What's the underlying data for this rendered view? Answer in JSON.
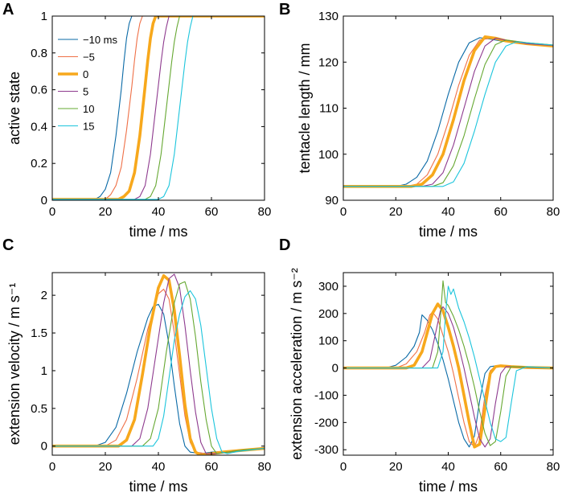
{
  "legend": {
    "entries": [
      "−10 ms",
      "−5",
      "0",
      "5",
      "10",
      "15"
    ],
    "colors": [
      "#0a6aa6",
      "#ef7047",
      "#f7a81c",
      "#8e3a8e",
      "#66a832",
      "#1cc5dc"
    ]
  },
  "chart_data": [
    {
      "panel": "A",
      "type": "line",
      "xlabel": "time / ms",
      "ylabel": "active state",
      "xlim": [
        0,
        80
      ],
      "ylim": [
        0,
        1
      ],
      "xticks": [
        "0",
        "20",
        "40",
        "60",
        "80"
      ],
      "xtick_values": [
        0,
        20,
        40,
        60,
        80
      ],
      "yticks": [
        "0",
        "0.2",
        "0.4",
        "0.6",
        "0.8",
        "1"
      ],
      "ytick_values": [
        0,
        0.2,
        0.4,
        0.6,
        0.8,
        1
      ],
      "series": [
        {
          "name": "−10 ms",
          "x": [
            0,
            16,
            18,
            20,
            22,
            24,
            26,
            27,
            28,
            29,
            30,
            80
          ],
          "y": [
            0.005,
            0.005,
            0.02,
            0.06,
            0.15,
            0.35,
            0.6,
            0.75,
            0.88,
            0.96,
            1,
            1
          ]
        },
        {
          "name": "−5",
          "x": [
            0,
            20,
            22,
            24,
            26,
            28,
            30,
            31,
            32,
            33,
            34,
            80
          ],
          "y": [
            0.005,
            0.005,
            0.03,
            0.08,
            0.18,
            0.38,
            0.62,
            0.76,
            0.88,
            0.96,
            1,
            1
          ]
        },
        {
          "name": "0",
          "x": [
            0,
            25,
            27,
            29,
            31,
            33,
            35,
            36,
            37,
            38,
            39,
            80
          ],
          "y": [
            0.005,
            0.005,
            0.02,
            0.05,
            0.15,
            0.35,
            0.62,
            0.76,
            0.88,
            0.96,
            1,
            1
          ]
        },
        {
          "name": "5",
          "x": [
            0,
            31,
            33,
            35,
            37,
            39,
            41,
            42,
            43,
            44,
            80
          ],
          "y": [
            0.005,
            0.005,
            0.02,
            0.08,
            0.25,
            0.5,
            0.75,
            0.86,
            0.94,
            1,
            1
          ]
        },
        {
          "name": "10",
          "x": [
            0,
            35,
            37,
            39,
            41,
            43,
            45,
            46,
            47,
            48,
            80
          ],
          "y": [
            0.005,
            0.005,
            0.02,
            0.08,
            0.25,
            0.5,
            0.75,
            0.86,
            0.94,
            1,
            1
          ]
        },
        {
          "name": "15",
          "x": [
            0,
            40,
            42,
            44,
            46,
            48,
            50,
            51,
            52,
            53,
            80
          ],
          "y": [
            0.005,
            0.005,
            0.02,
            0.08,
            0.25,
            0.5,
            0.75,
            0.86,
            0.94,
            1,
            1
          ]
        }
      ]
    },
    {
      "panel": "B",
      "type": "line",
      "xlabel": "time / ms",
      "ylabel": "tentacle length / mm",
      "xlim": [
        0,
        80
      ],
      "ylim": [
        90,
        130
      ],
      "xticks": [
        "0",
        "20",
        "40",
        "60",
        "80"
      ],
      "xtick_values": [
        0,
        20,
        40,
        60,
        80
      ],
      "yticks": [
        "90",
        "100",
        "110",
        "120",
        "130"
      ],
      "ytick_values": [
        90,
        100,
        110,
        120,
        130
      ],
      "series": [
        {
          "name": "−10 ms",
          "x": [
            0,
            20,
            24,
            28,
            32,
            36,
            40,
            44,
            48,
            52,
            56,
            60,
            70,
            80
          ],
          "y": [
            93,
            93,
            93.5,
            95,
            98.5,
            105,
            113,
            120,
            124.2,
            125.3,
            125,
            124.6,
            124,
            123.5
          ]
        },
        {
          "name": "−5",
          "x": [
            0,
            24,
            28,
            32,
            36,
            40,
            44,
            48,
            52,
            56,
            60,
            70,
            80
          ],
          "y": [
            93,
            93,
            93.5,
            95.5,
            100,
            107,
            115,
            121.5,
            124.8,
            125.2,
            124.8,
            124,
            123.5
          ]
        },
        {
          "name": "0",
          "x": [
            0,
            26,
            30,
            34,
            38,
            42,
            46,
            50,
            54,
            58,
            62,
            70,
            80
          ],
          "y": [
            93,
            93,
            93.5,
            95.5,
            100,
            107.5,
            116,
            122.5,
            125.5,
            125.2,
            124.6,
            124,
            123.5
          ]
        },
        {
          "name": "5",
          "x": [
            0,
            30,
            34,
            38,
            42,
            46,
            50,
            54,
            58,
            62,
            70,
            80
          ],
          "y": [
            93,
            93,
            93.5,
            96,
            102,
            110,
            118,
            123.5,
            125.2,
            124.8,
            124,
            123.6
          ]
        },
        {
          "name": "10",
          "x": [
            0,
            34,
            38,
            42,
            46,
            50,
            54,
            58,
            62,
            70,
            80
          ],
          "y": [
            93,
            93,
            93.8,
            97.5,
            104,
            112,
            119.5,
            123.8,
            124.8,
            124.2,
            123.7
          ]
        },
        {
          "name": "15",
          "x": [
            0,
            38,
            42,
            46,
            50,
            54,
            58,
            62,
            66,
            70,
            80
          ],
          "y": [
            93,
            93,
            94,
            98,
            105,
            113,
            120,
            123.5,
            124.4,
            124.2,
            123.7
          ]
        }
      ]
    },
    {
      "panel": "C",
      "type": "line",
      "xlabel": "time / ms",
      "ylabel": "extension velocity / m s⁻¹",
      "xlim": [
        0,
        80
      ],
      "ylim": [
        -0.12,
        2.3
      ],
      "xticks": [
        "0",
        "20",
        "40",
        "60",
        "80"
      ],
      "xtick_values": [
        0,
        20,
        40,
        60,
        80
      ],
      "yticks": [
        "0",
        "0.5",
        "1",
        "1.5",
        "2"
      ],
      "ytick_values": [
        0,
        0.5,
        1,
        1.5,
        2
      ],
      "series": [
        {
          "name": "−10 ms",
          "x": [
            0,
            16,
            20,
            24,
            28,
            32,
            36,
            38,
            40,
            42,
            44,
            46,
            48,
            50,
            52,
            56,
            60,
            70,
            80
          ],
          "y": [
            0,
            0,
            0.05,
            0.25,
            0.7,
            1.25,
            1.7,
            1.85,
            1.88,
            1.75,
            1.35,
            0.8,
            0.3,
            0.0,
            -0.08,
            -0.1,
            -0.08,
            -0.06,
            -0.03
          ]
        },
        {
          "name": "−5",
          "x": [
            0,
            20,
            24,
            28,
            32,
            36,
            40,
            42,
            44,
            46,
            48,
            50,
            52,
            54,
            58,
            62,
            70,
            80
          ],
          "y": [
            0,
            0,
            0.08,
            0.35,
            0.9,
            1.55,
            2.02,
            2.08,
            1.95,
            1.5,
            0.95,
            0.4,
            0.05,
            -0.08,
            -0.1,
            -0.08,
            -0.06,
            -0.03
          ]
        },
        {
          "name": "0",
          "x": [
            0,
            25,
            28,
            31,
            34,
            37,
            40,
            42,
            44,
            46,
            48,
            50,
            52,
            54,
            56,
            60,
            64,
            70,
            80
          ],
          "y": [
            0,
            0,
            0.08,
            0.35,
            0.95,
            1.6,
            2.1,
            2.26,
            2.2,
            1.8,
            1.2,
            0.55,
            0.1,
            -0.08,
            -0.12,
            -0.1,
            -0.08,
            -0.06,
            -0.03
          ]
        },
        {
          "name": "5",
          "x": [
            0,
            30,
            33,
            36,
            39,
            42,
            44,
            46,
            48,
            50,
            52,
            54,
            56,
            58,
            62,
            70,
            80
          ],
          "y": [
            0,
            0,
            0.1,
            0.5,
            1.2,
            1.9,
            2.22,
            2.28,
            2.1,
            1.6,
            1.0,
            0.45,
            0.05,
            -0.1,
            -0.1,
            -0.06,
            -0.03
          ]
        },
        {
          "name": "10",
          "x": [
            0,
            34,
            37,
            40,
            43,
            46,
            48,
            50,
            52,
            54,
            56,
            58,
            60,
            62,
            66,
            72,
            80
          ],
          "y": [
            0,
            0,
            0.1,
            0.5,
            1.25,
            1.9,
            2.15,
            2.18,
            1.95,
            1.45,
            0.85,
            0.35,
            0.0,
            -0.1,
            -0.08,
            -0.05,
            -0.03
          ]
        },
        {
          "name": "15",
          "x": [
            0,
            38,
            40,
            42,
            44,
            46,
            48,
            50,
            52,
            54,
            56,
            58,
            60,
            62,
            64,
            66,
            70,
            80
          ],
          "y": [
            0,
            0,
            0.1,
            0.4,
            0.9,
            1.4,
            1.75,
            1.98,
            2.06,
            1.95,
            1.6,
            1.05,
            0.5,
            0.1,
            -0.08,
            -0.1,
            -0.07,
            -0.03
          ]
        }
      ]
    },
    {
      "panel": "D",
      "type": "line",
      "xlabel": "time / ms",
      "ylabel": "extension acceleration / m s⁻²",
      "xlim": [
        0,
        80
      ],
      "ylim": [
        -320,
        350
      ],
      "xticks": [
        "0",
        "20",
        "40",
        "60",
        "80"
      ],
      "xtick_values": [
        0,
        20,
        40,
        60,
        80
      ],
      "yticks": [
        "-300",
        "-200",
        "-100",
        "0",
        "100",
        "200",
        "300"
      ],
      "ytick_values": [
        -300,
        -200,
        -100,
        0,
        100,
        200,
        300
      ],
      "series": [
        {
          "name": "−10 ms",
          "x": [
            0,
            16,
            20,
            24,
            27,
            29,
            30,
            32,
            34,
            36,
            38,
            40,
            42,
            44,
            46,
            48,
            50,
            52,
            54,
            56,
            58,
            60,
            64,
            70,
            80
          ],
          "y": [
            0,
            0,
            10,
            40,
            80,
            130,
            195,
            175,
            140,
            90,
            30,
            -40,
            -120,
            -200,
            -260,
            -290,
            -250,
            -120,
            -20,
            5,
            8,
            5,
            3,
            2,
            0
          ]
        },
        {
          "name": "−5",
          "x": [
            0,
            20,
            24,
            28,
            31,
            33,
            34,
            36,
            38,
            40,
            42,
            44,
            46,
            48,
            50,
            52,
            54,
            56,
            58,
            62,
            70,
            80
          ],
          "y": [
            0,
            0,
            15,
            60,
            130,
            195,
            205,
            180,
            120,
            60,
            -20,
            -110,
            -200,
            -270,
            -290,
            -240,
            -100,
            -10,
            6,
            4,
            2,
            0
          ]
        },
        {
          "name": "0",
          "x": [
            0,
            24,
            27,
            30,
            32,
            34,
            36,
            38,
            40,
            42,
            44,
            46,
            48,
            50,
            52,
            54,
            56,
            58,
            60,
            64,
            70,
            80
          ],
          "y": [
            0,
            0,
            10,
            60,
            130,
            200,
            235,
            210,
            150,
            80,
            0,
            -100,
            -200,
            -290,
            -280,
            -150,
            -20,
            5,
            8,
            5,
            2,
            0
          ]
        },
        {
          "name": "5",
          "x": [
            0,
            30,
            33,
            35,
            37,
            38,
            40,
            42,
            44,
            46,
            48,
            50,
            52,
            54,
            56,
            58,
            60,
            62,
            66,
            72,
            80
          ],
          "y": [
            0,
            0,
            30,
            120,
            210,
            225,
            200,
            150,
            80,
            0,
            -90,
            -180,
            -260,
            -290,
            -260,
            -130,
            -20,
            5,
            4,
            2,
            0
          ]
        },
        {
          "name": "10",
          "x": [
            0,
            34,
            36,
            37,
            38,
            39,
            40,
            42,
            44,
            46,
            48,
            50,
            52,
            54,
            56,
            58,
            60,
            62,
            64,
            68,
            74,
            80
          ],
          "y": [
            0,
            0,
            60,
            180,
            320,
            240,
            230,
            190,
            140,
            80,
            10,
            -70,
            -160,
            -240,
            -285,
            -270,
            -160,
            -30,
            5,
            4,
            2,
            0
          ]
        },
        {
          "name": "15",
          "x": [
            0,
            36,
            38,
            39,
            40,
            41,
            42,
            44,
            46,
            48,
            50,
            52,
            54,
            56,
            58,
            60,
            62,
            64,
            66,
            70,
            76,
            80
          ],
          "y": [
            0,
            0,
            60,
            200,
            300,
            270,
            290,
            220,
            170,
            110,
            40,
            -40,
            -120,
            -200,
            -260,
            -270,
            -255,
            -130,
            -10,
            5,
            2,
            0
          ]
        }
      ]
    }
  ]
}
